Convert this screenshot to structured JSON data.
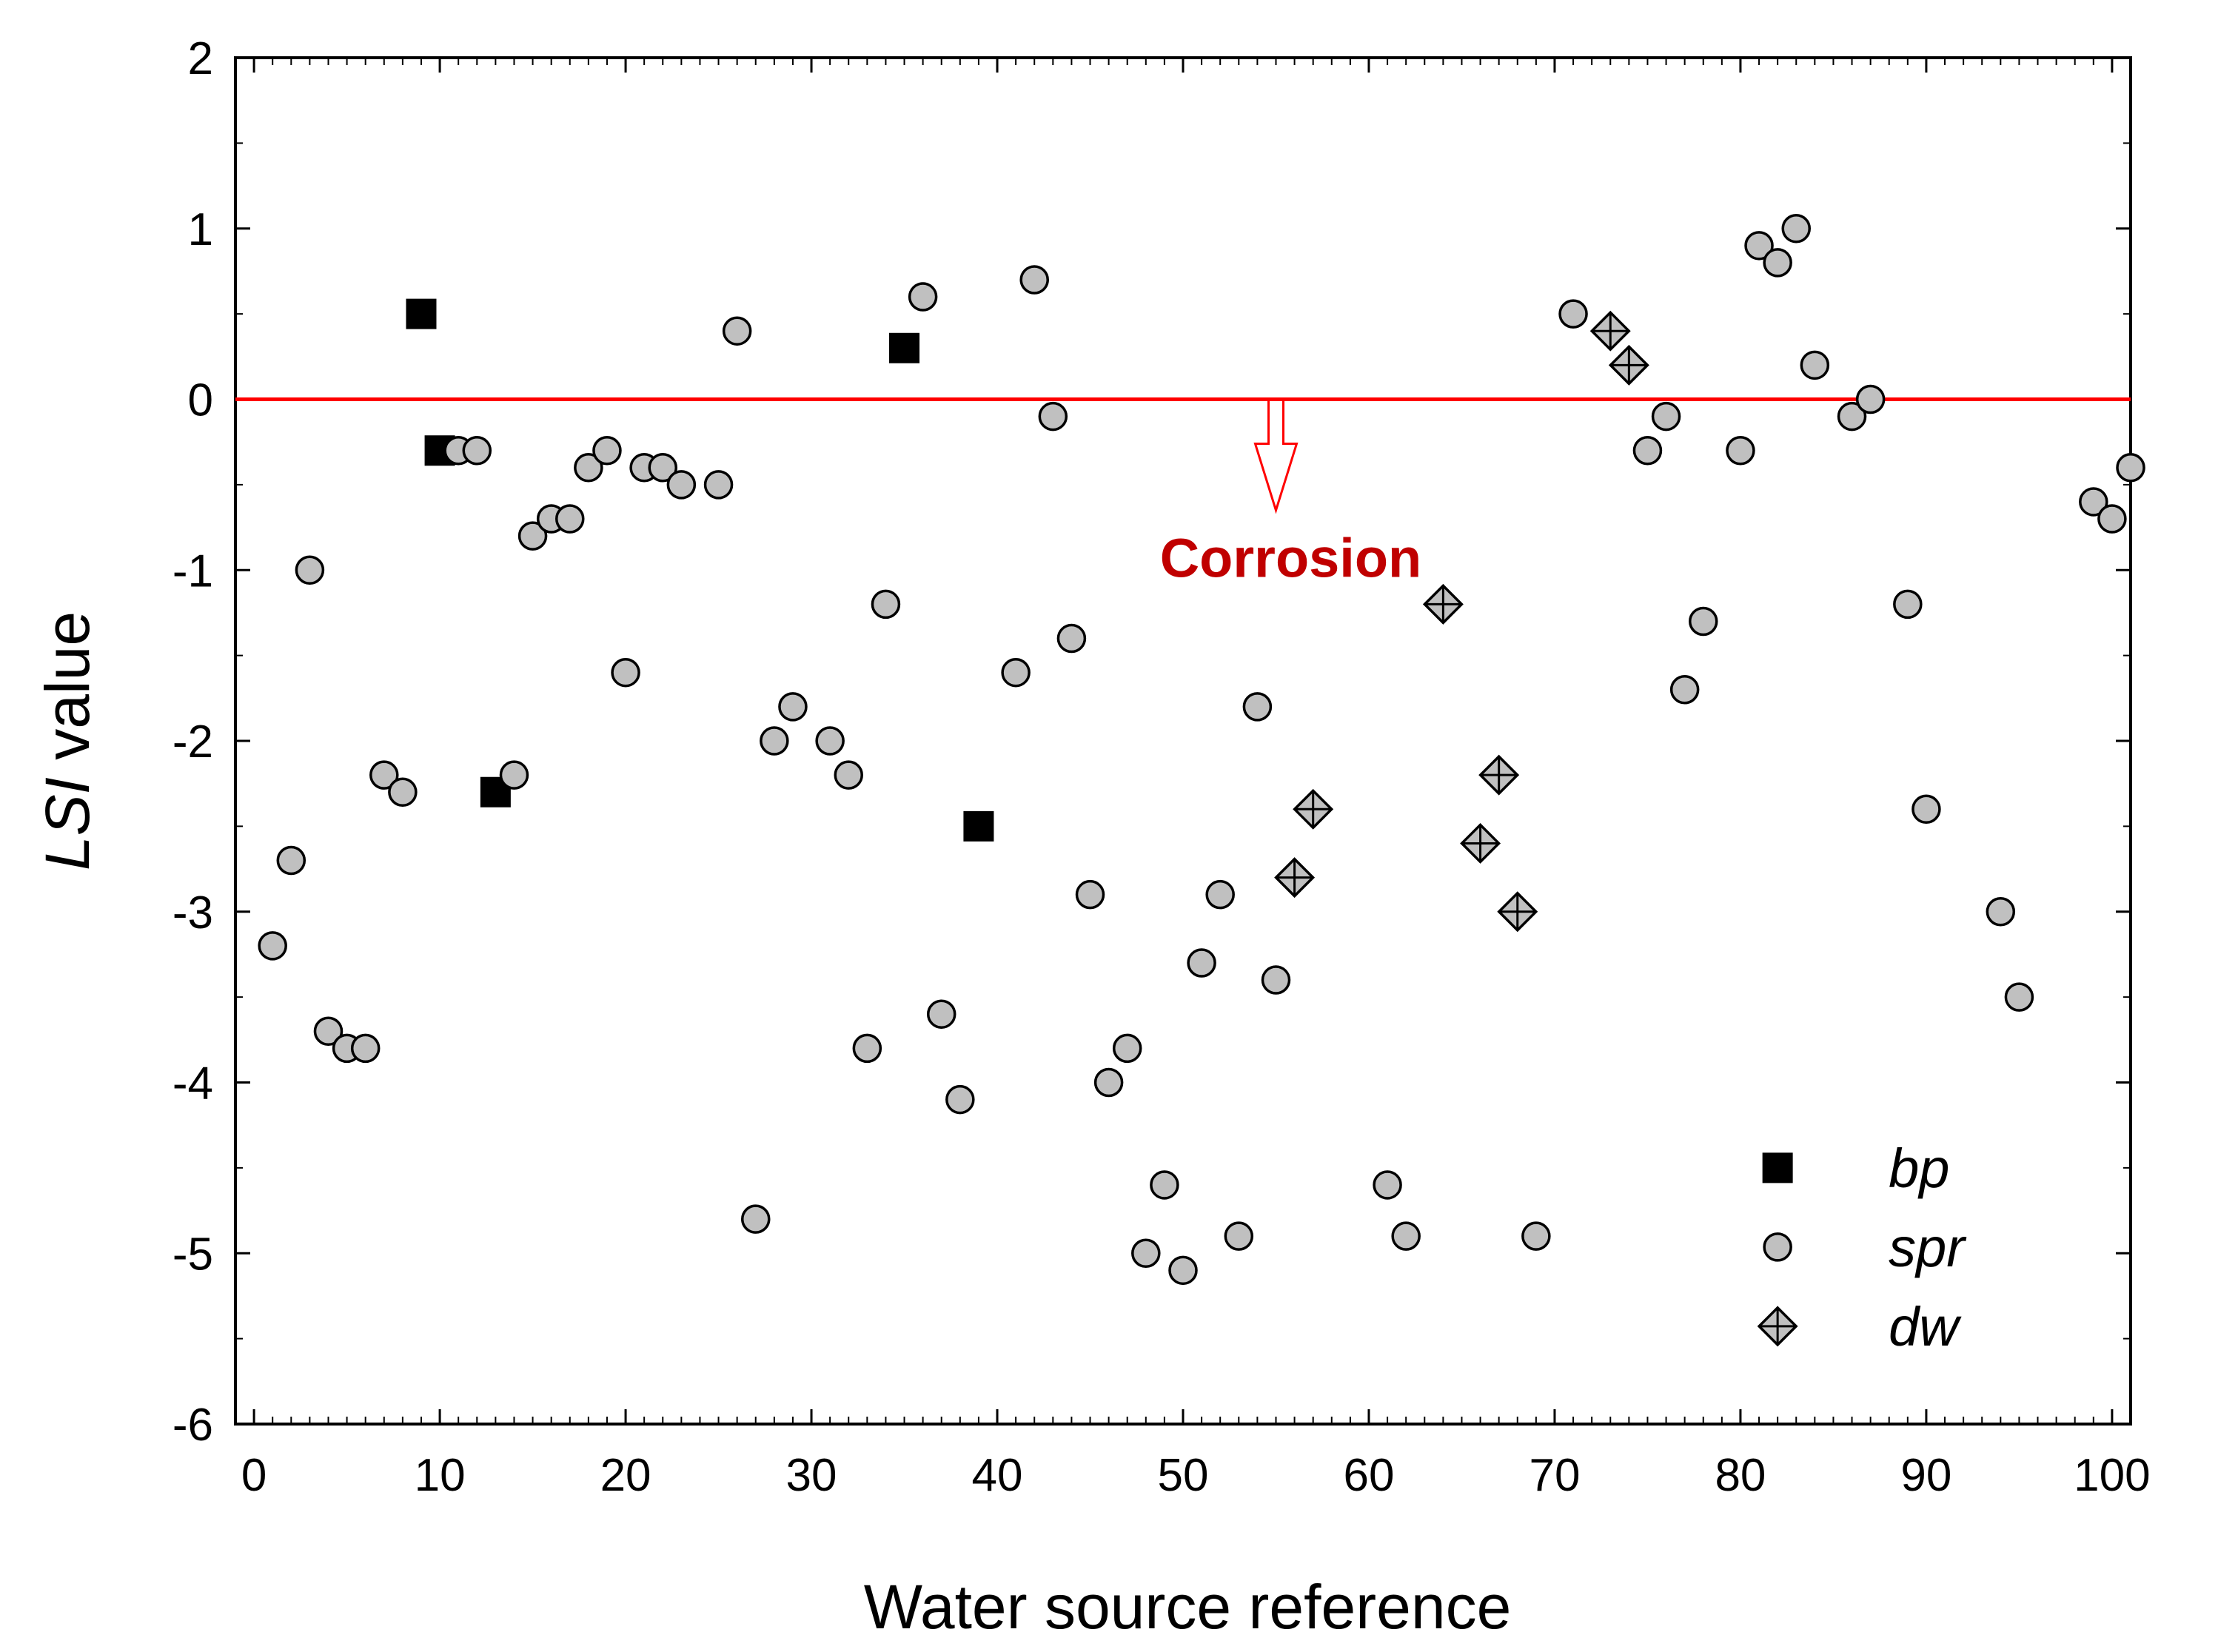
{
  "chart_data": {
    "type": "scatter",
    "title": "",
    "xlabel": "Water source reference",
    "ylabel": {
      "italic": "LSI",
      "rest": " value"
    },
    "xlim": [
      -1,
      101
    ],
    "ylim": [
      -6,
      2
    ],
    "x_ticks": [
      0,
      10,
      20,
      30,
      40,
      50,
      60,
      70,
      80,
      90,
      100
    ],
    "y_ticks": [
      -6,
      -5,
      -4,
      -3,
      -2,
      -1,
      0,
      1,
      2
    ],
    "reference_line": {
      "y": 0,
      "color": "#ff0000"
    },
    "annotation": {
      "text": "Corrosion",
      "x": 55,
      "color": "#c00000"
    },
    "legend_position": "bottom-right",
    "series": [
      {
        "name": "bp",
        "marker": "square",
        "color": "#000000",
        "points": [
          [
            9,
            0.5
          ],
          [
            10,
            -0.3
          ],
          [
            13,
            -2.3
          ],
          [
            35,
            0.3
          ],
          [
            39,
            -2.5
          ]
        ]
      },
      {
        "name": "spr",
        "marker": "circle",
        "color": "#c0c0c0",
        "points": [
          [
            1,
            -3.2
          ],
          [
            2,
            -2.7
          ],
          [
            3,
            -1.0
          ],
          [
            4,
            -3.7
          ],
          [
            5,
            -3.8
          ],
          [
            6,
            -3.8
          ],
          [
            7,
            -2.2
          ],
          [
            8,
            -2.3
          ],
          [
            11,
            -0.3
          ],
          [
            12,
            -0.3
          ],
          [
            14,
            -2.2
          ],
          [
            15,
            -0.8
          ],
          [
            16,
            -0.7
          ],
          [
            17,
            -0.7
          ],
          [
            18,
            -0.4
          ],
          [
            19,
            -0.3
          ],
          [
            20,
            -1.6
          ],
          [
            21,
            -0.4
          ],
          [
            22,
            -0.4
          ],
          [
            23,
            -0.5
          ],
          [
            25,
            -0.5
          ],
          [
            26,
            0.4
          ],
          [
            27,
            -4.8
          ],
          [
            28,
            -2.0
          ],
          [
            29,
            -1.8
          ],
          [
            31,
            -2.0
          ],
          [
            32,
            -2.2
          ],
          [
            33,
            -3.8
          ],
          [
            34,
            -1.2
          ],
          [
            36,
            0.6
          ],
          [
            37,
            -3.6
          ],
          [
            38,
            -4.1
          ],
          [
            41,
            -1.6
          ],
          [
            42,
            0.7
          ],
          [
            43,
            -0.1
          ],
          [
            44,
            -1.4
          ],
          [
            45,
            -2.9
          ],
          [
            46,
            -4.0
          ],
          [
            47,
            -3.8
          ],
          [
            48,
            -5.0
          ],
          [
            49,
            -4.6
          ],
          [
            50,
            -5.1
          ],
          [
            51,
            -3.3
          ],
          [
            52,
            -2.9
          ],
          [
            53,
            -4.9
          ],
          [
            54,
            -1.8
          ],
          [
            55,
            -3.4
          ],
          [
            61,
            -4.6
          ],
          [
            62,
            -4.9
          ],
          [
            69,
            -4.9
          ],
          [
            71,
            0.5
          ],
          [
            75,
            -0.3
          ],
          [
            76,
            -0.1
          ],
          [
            77,
            -1.7
          ],
          [
            78,
            -1.3
          ],
          [
            80,
            -0.3
          ],
          [
            81,
            0.9
          ],
          [
            82,
            0.8
          ],
          [
            83,
            1.0
          ],
          [
            84,
            0.2
          ],
          [
            86,
            -0.1
          ],
          [
            87,
            0.0
          ],
          [
            89,
            -1.2
          ],
          [
            90,
            -2.4
          ],
          [
            94,
            -3.0
          ],
          [
            95,
            -3.5
          ],
          [
            99,
            -0.6
          ],
          [
            100,
            -0.7
          ],
          [
            101,
            -0.4
          ]
        ]
      },
      {
        "name": "dw",
        "marker": "diamond-cross",
        "color": "#c0c0c0",
        "points": [
          [
            56,
            -2.8
          ],
          [
            57,
            -2.4
          ],
          [
            64,
            -1.2
          ],
          [
            66,
            -2.6
          ],
          [
            67,
            -2.2
          ],
          [
            68,
            -3.0
          ],
          [
            73,
            0.4
          ],
          [
            74,
            0.2
          ]
        ]
      }
    ]
  }
}
